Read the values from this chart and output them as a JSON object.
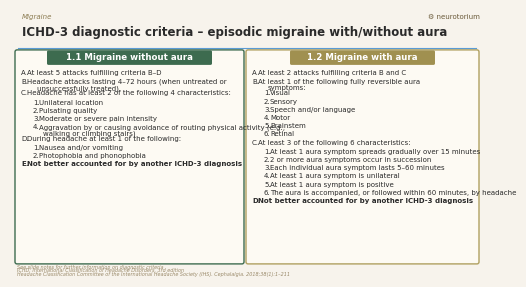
{
  "title": "ICHD-3 diagnostic criteria – episodic migraine with/without aura",
  "subtitle": "Migraine",
  "bg_color": "#f7f3ec",
  "title_color": "#2a2a2a",
  "subtitle_color": "#8a7a50",
  "header1_text": "1.1 Migraine without aura",
  "header2_text": "1.2 Migraine with aura",
  "header1_color": "#3d6b4f",
  "header2_color": "#a09050",
  "box1_border_color": "#3d6b4f",
  "box2_border_color": "#b0a060",
  "box_bg_color": "#fdfaf3",
  "text_color": "#2a2a2a",
  "left_content": [
    {
      "level": 0,
      "label": "A.",
      "text": "At least 5 attacks fulfilling criteria B–D",
      "bold": false
    },
    {
      "level": 0,
      "label": "B.",
      "text": "Headache attacks lasting 4–72 hours (when untreated or",
      "bold": false,
      "continuation": "unsuccessfully treated)"
    },
    {
      "level": 0,
      "label": "C.",
      "text": "Headache has at least 2 of the following 4 characteristics:",
      "bold": false
    },
    {
      "level": 1,
      "label": "1.",
      "text": "Unilateral location",
      "bold": false
    },
    {
      "level": 1,
      "label": "2.",
      "text": "Pulsating quality",
      "bold": false
    },
    {
      "level": 1,
      "label": "3.",
      "text": "Moderate or severe pain intensity",
      "bold": false
    },
    {
      "level": 1,
      "label": "4.",
      "text": "Aggravation by or causing avoidance of routing physical activity (e.g.,",
      "bold": false,
      "continuation": "walking or climbing stairs)"
    },
    {
      "level": 0,
      "label": "D.",
      "text": "During headache at least 1 of the following:",
      "bold": false
    },
    {
      "level": 1,
      "label": "1.",
      "text": "Nausea and/or vomiting",
      "bold": false
    },
    {
      "level": 1,
      "label": "2.",
      "text": "Photophobia and phonophobia",
      "bold": false
    },
    {
      "level": 0,
      "label": "E.",
      "text": "Not better accounted for by another ICHD-3 diagnosis",
      "bold": true
    }
  ],
  "right_content": [
    {
      "level": 0,
      "label": "A.",
      "text": "At least 2 attacks fulfilling criteria B and C",
      "bold": false
    },
    {
      "level": 0,
      "label": "B.",
      "text": "At least 1 of the following fully reversible aura",
      "bold": false,
      "continuation": "symptoms:"
    },
    {
      "level": 1,
      "label": "1.",
      "text": "Visual",
      "bold": false
    },
    {
      "level": 1,
      "label": "2.",
      "text": "Sensory",
      "bold": false
    },
    {
      "level": 1,
      "label": "3.",
      "text": "Speech and/or language",
      "bold": false
    },
    {
      "level": 1,
      "label": "4.",
      "text": "Motor",
      "bold": false
    },
    {
      "level": 1,
      "label": "5.",
      "text": "Brainstem",
      "bold": false
    },
    {
      "level": 1,
      "label": "6.",
      "text": "Retinal",
      "bold": false
    },
    {
      "level": 0,
      "label": "C.",
      "text": "At least 3 of the following 6 characteristics:",
      "bold": false
    },
    {
      "level": 1,
      "label": "1.",
      "text": "At least 1 aura symptom spreads gradually over 15 minutes",
      "bold": false
    },
    {
      "level": 1,
      "label": "2.",
      "text": "2 or more aura symptoms occur in succession",
      "bold": false
    },
    {
      "level": 1,
      "label": "3.",
      "text": "Each individual aura symptom lasts 5–60 minutes",
      "bold": false
    },
    {
      "level": 1,
      "label": "4.",
      "text": "At least 1 aura symptom is unilateral",
      "bold": false
    },
    {
      "level": 1,
      "label": "5.",
      "text": "At least 1 aura symptom is positive",
      "bold": false
    },
    {
      "level": 1,
      "label": "6.",
      "text": "The aura is accompanied, or followed within 60 minutes, by headache",
      "bold": false
    },
    {
      "level": 0,
      "label": "D.",
      "text": "Not better accounted for by another ICHD-3 diagnosis",
      "bold": true
    }
  ],
  "footer_lines": [
    "See slide notes for further information on diagnostic criteria",
    "ICHD: International Classification of Headache Disorders, 3rd edition",
    "Headache Classification Committee of the International Headache Society (IHS). Cephalalgia. 2018;38(1):1–211"
  ],
  "title_underline_color": "#5b9bd5",
  "footer_color": "#9a8a6a",
  "neurotorium_text": "⚙ neurotorium"
}
